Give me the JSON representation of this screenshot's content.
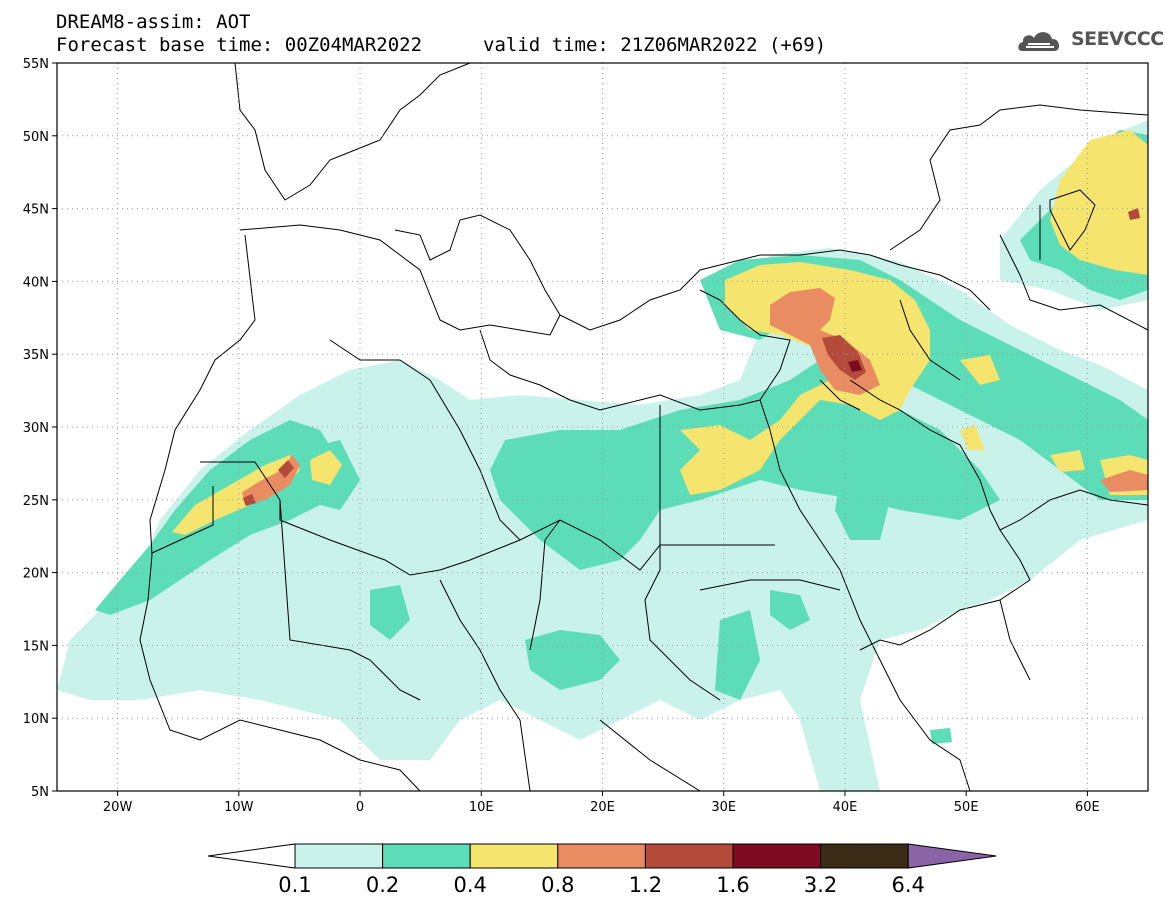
{
  "header": {
    "title_line1": "DREAM8-assim: AOT",
    "base_time": "Forecast base time: 00Z04MAR2022",
    "valid_time": "valid time: 21Z06MAR2022 (+69)",
    "logo_text": "SEEVCCC",
    "logo_icon": "cloud-icon"
  },
  "map": {
    "lon_range": [
      -25,
      65
    ],
    "lat_range": [
      5,
      55
    ],
    "lat_ticks": [
      "5N",
      "10N",
      "15N",
      "20N",
      "25N",
      "30N",
      "35N",
      "40N",
      "45N",
      "50N",
      "55N"
    ],
    "lon_ticks": [
      "20W",
      "10W",
      "0",
      "10E",
      "20E",
      "30E",
      "40E",
      "50E",
      "60E"
    ],
    "grid": "dotted"
  },
  "legend": {
    "levels": [
      "0.1",
      "0.2",
      "0.4",
      "0.8",
      "1.2",
      "1.6",
      "3.2",
      "6.4"
    ],
    "colors": [
      "#ffffff",
      "#c8f2ea",
      "#5ddcb8",
      "#f5e46e",
      "#ea8c62",
      "#b44a3a",
      "#7e0a22",
      "#3b2a15",
      "#8a64a6"
    ]
  }
}
